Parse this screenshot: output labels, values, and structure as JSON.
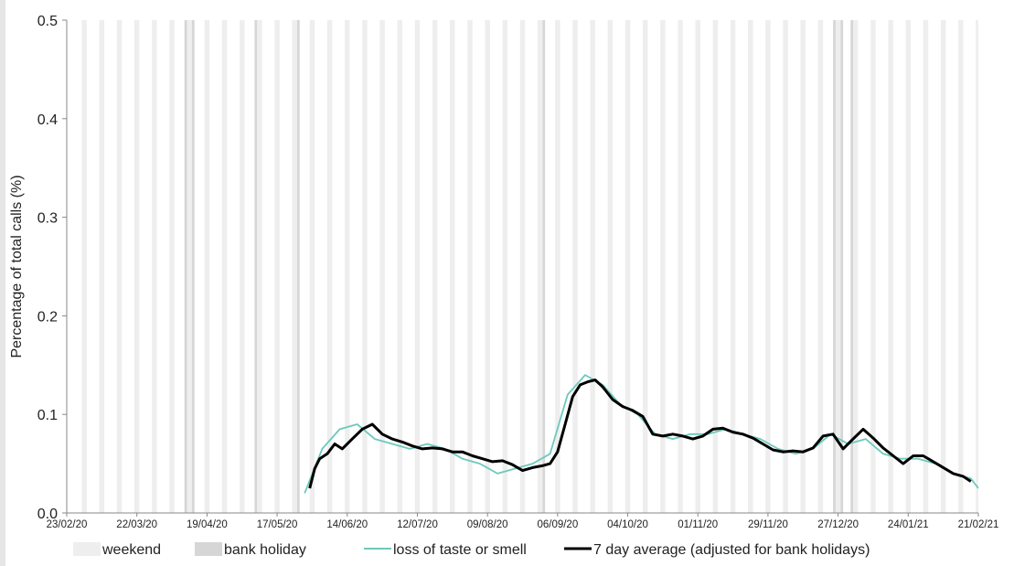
{
  "chart_data": {
    "type": "line",
    "ylabel": "Percentage of total calls (%)",
    "xlabel": "",
    "ylim": [
      0,
      0.5
    ],
    "yticks": [
      0.0,
      0.1,
      0.2,
      0.3,
      0.4,
      0.5
    ],
    "ytick_labels": [
      "0.0",
      "0.1",
      "0.2",
      "0.3",
      "0.4",
      "0.5"
    ],
    "x_range": [
      "2020-02-23",
      "2021-02-21"
    ],
    "xtick_dates": [
      "2020-02-23",
      "2020-03-22",
      "2020-04-19",
      "2020-05-17",
      "2020-06-14",
      "2020-07-12",
      "2020-08-09",
      "2020-09-06",
      "2020-10-04",
      "2020-11-01",
      "2020-11-29",
      "2020-12-27",
      "2021-01-24",
      "2021-02-21"
    ],
    "xtick_labels": [
      "23/02/20",
      "22/03/20",
      "19/04/20",
      "17/05/20",
      "14/06/20",
      "12/07/20",
      "09/08/20",
      "06/09/20",
      "04/10/20",
      "01/11/20",
      "29/11/20",
      "27/12/20",
      "24/01/21",
      "21/02/21"
    ],
    "grid": false,
    "legend_position": "bottom",
    "bank_holidays": [
      "2020-04-10",
      "2020-04-13",
      "2020-05-08",
      "2020-05-25",
      "2020-08-31",
      "2020-12-25",
      "2020-12-28",
      "2021-01-01"
    ],
    "series": [
      {
        "name": "loss of taste or smell",
        "color": "#6cc9bd",
        "x": [
          "2020-05-28",
          "2020-06-04",
          "2020-06-11",
          "2020-06-18",
          "2020-06-25",
          "2020-07-02",
          "2020-07-09",
          "2020-07-16",
          "2020-07-23",
          "2020-07-30",
          "2020-08-06",
          "2020-08-13",
          "2020-08-20",
          "2020-08-27",
          "2020-09-03",
          "2020-09-10",
          "2020-09-17",
          "2020-09-24",
          "2020-10-01",
          "2020-10-08",
          "2020-10-15",
          "2020-10-22",
          "2020-10-29",
          "2020-11-05",
          "2020-11-12",
          "2020-11-19",
          "2020-11-26",
          "2020-12-03",
          "2020-12-10",
          "2020-12-17",
          "2020-12-24",
          "2020-12-31",
          "2021-01-07",
          "2021-01-14",
          "2021-01-21",
          "2021-01-28",
          "2021-02-04",
          "2021-02-11",
          "2021-02-18",
          "2021-02-21"
        ],
        "values": [
          0.02,
          0.065,
          0.085,
          0.09,
          0.075,
          0.07,
          0.065,
          0.07,
          0.065,
          0.055,
          0.05,
          0.04,
          0.045,
          0.05,
          0.06,
          0.12,
          0.14,
          0.13,
          0.11,
          0.1,
          0.08,
          0.075,
          0.08,
          0.08,
          0.085,
          0.08,
          0.075,
          0.065,
          0.06,
          0.065,
          0.08,
          0.07,
          0.075,
          0.06,
          0.055,
          0.055,
          0.05,
          0.04,
          0.035,
          0.025
        ]
      },
      {
        "name": "7 day average (adjusted for bank holidays)",
        "color": "#000000",
        "x": [
          "2020-05-30",
          "2020-06-01",
          "2020-06-03",
          "2020-06-06",
          "2020-06-09",
          "2020-06-12",
          "2020-06-16",
          "2020-06-20",
          "2020-06-24",
          "2020-06-28",
          "2020-07-02",
          "2020-07-06",
          "2020-07-10",
          "2020-07-14",
          "2020-07-18",
          "2020-07-22",
          "2020-07-26",
          "2020-07-30",
          "2020-08-03",
          "2020-08-07",
          "2020-08-11",
          "2020-08-15",
          "2020-08-19",
          "2020-08-23",
          "2020-08-27",
          "2020-08-31",
          "2020-09-03",
          "2020-09-06",
          "2020-09-09",
          "2020-09-12",
          "2020-09-15",
          "2020-09-18",
          "2020-09-21",
          "2020-09-24",
          "2020-09-28",
          "2020-10-02",
          "2020-10-06",
          "2020-10-10",
          "2020-10-14",
          "2020-10-18",
          "2020-10-22",
          "2020-10-26",
          "2020-10-30",
          "2020-11-03",
          "2020-11-07",
          "2020-11-11",
          "2020-11-15",
          "2020-11-19",
          "2020-11-23",
          "2020-11-27",
          "2020-12-01",
          "2020-12-05",
          "2020-12-09",
          "2020-12-13",
          "2020-12-17",
          "2020-12-21",
          "2020-12-25",
          "2020-12-29",
          "2021-01-02",
          "2021-01-06",
          "2021-01-10",
          "2021-01-14",
          "2021-01-18",
          "2021-01-22",
          "2021-01-26",
          "2021-01-30",
          "2021-02-03",
          "2021-02-07",
          "2021-02-11",
          "2021-02-15",
          "2021-02-18"
        ],
        "values": [
          0.025,
          0.045,
          0.055,
          0.06,
          0.07,
          0.065,
          0.075,
          0.085,
          0.09,
          0.08,
          0.075,
          0.072,
          0.068,
          0.065,
          0.066,
          0.065,
          0.062,
          0.062,
          0.058,
          0.055,
          0.052,
          0.053,
          0.049,
          0.043,
          0.046,
          0.048,
          0.05,
          0.062,
          0.09,
          0.118,
          0.13,
          0.133,
          0.135,
          0.128,
          0.115,
          0.108,
          0.104,
          0.098,
          0.08,
          0.078,
          0.08,
          0.078,
          0.075,
          0.078,
          0.085,
          0.086,
          0.082,
          0.08,
          0.076,
          0.07,
          0.064,
          0.062,
          0.063,
          0.062,
          0.066,
          0.078,
          0.08,
          0.065,
          0.075,
          0.085,
          0.076,
          0.066,
          0.058,
          0.05,
          0.058,
          0.058,
          0.052,
          0.046,
          0.04,
          0.037,
          0.032
        ]
      }
    ],
    "legend": [
      {
        "label": "weekend",
        "swatch": "box",
        "color": "#eeeeee"
      },
      {
        "label": "bank holiday",
        "swatch": "box",
        "color": "#d6d6d6"
      },
      {
        "label": "loss of taste or smell",
        "swatch": "line",
        "color": "#6cc9bd"
      },
      {
        "label": "7 day average (adjusted for bank holidays)",
        "swatch": "line",
        "color": "#000000"
      }
    ],
    "colors": {
      "weekend": "#eeeeee",
      "bank_holiday": "#d6d6d6",
      "axis": "#888888"
    }
  }
}
